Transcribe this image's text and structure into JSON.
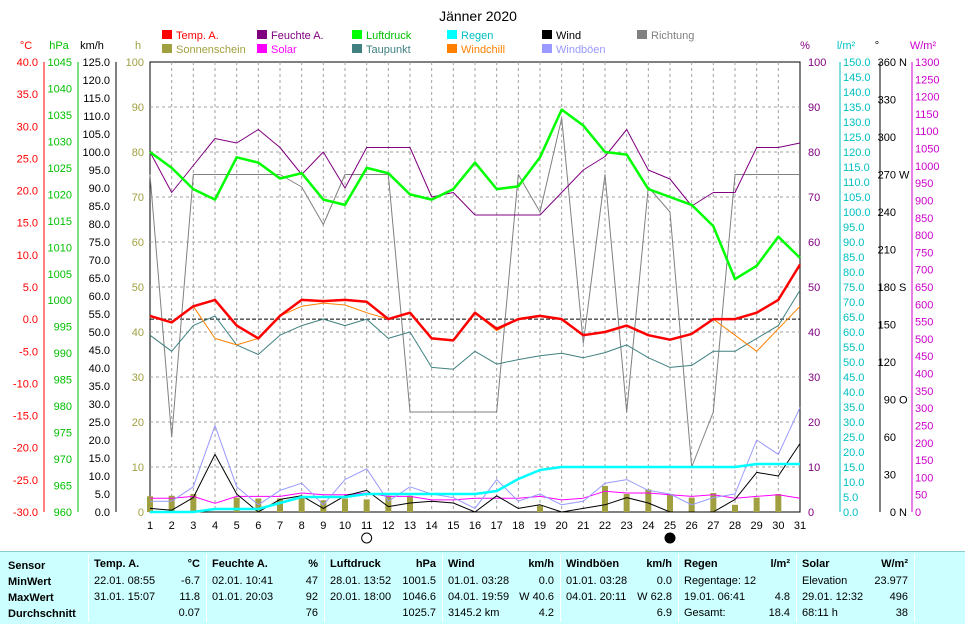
{
  "chart_data": {
    "type": "line",
    "title": "Jänner 2020",
    "xlim": [
      1,
      31
    ],
    "x": [
      1,
      2,
      3,
      4,
      5,
      6,
      7,
      8,
      9,
      10,
      11,
      12,
      13,
      14,
      15,
      16,
      17,
      18,
      19,
      20,
      21,
      22,
      23,
      24,
      25,
      26,
      27,
      28,
      29,
      30,
      31
    ],
    "legend": [
      {
        "key": "temp",
        "label": "Temp. A.",
        "color": "#ff0000"
      },
      {
        "key": "feuchte",
        "label": "Feuchte A.",
        "color": "#800080"
      },
      {
        "key": "luftdruck",
        "label": "Luftdruck",
        "color": "#00ff00"
      },
      {
        "key": "regen",
        "label": "Regen",
        "color": "#00ffff"
      },
      {
        "key": "wind",
        "label": "Wind",
        "color": "#000000"
      },
      {
        "key": "richtung",
        "label": "Richtung",
        "color": "#808080"
      },
      {
        "key": "sonne",
        "label": "Sonnenschein",
        "color": "#a0a040"
      },
      {
        "key": "solar",
        "label": "Solar",
        "color": "#ff00ff"
      },
      {
        "key": "taupunkt",
        "label": "Taupunkt",
        "color": "#408080"
      },
      {
        "key": "windchill",
        "label": "Windchill",
        "color": "#ff8000"
      },
      {
        "key": "windboeen",
        "label": "Windböen",
        "color": "#9999ff"
      }
    ],
    "axes": {
      "temp": {
        "unit": "°C",
        "min": -30,
        "max": 40,
        "step": 5,
        "color": "#ff0000"
      },
      "hpa": {
        "unit": "hPa",
        "min": 960,
        "max": 1045,
        "step": 5,
        "color": "#00c000"
      },
      "kmh": {
        "unit": "km/h",
        "min": 0,
        "max": 125,
        "step": 5,
        "color": "#000000"
      },
      "h": {
        "unit": "h",
        "min": 0,
        "max": 100,
        "step": 10,
        "color": "#a0a040"
      },
      "pct": {
        "unit": "%",
        "min": 0,
        "max": 100,
        "step": 10,
        "color": "#800080"
      },
      "lm2": {
        "unit": "l/m²",
        "min": 0,
        "max": 150,
        "step": 5,
        "color": "#00c0c0"
      },
      "deg": {
        "unit": "°",
        "min": 0,
        "max": 360,
        "step": 30,
        "color": "#000000",
        "compass": {
          "360": "N",
          "270": "W",
          "180": "S",
          "90": "O",
          "0": "N"
        }
      },
      "wm2": {
        "unit": "W/m²",
        "min": 0,
        "max": 1300,
        "step": 50,
        "color": "#cc00cc"
      }
    },
    "series": {
      "temp": [
        0.5,
        -0.5,
        2,
        3,
        -1,
        -3,
        0.5,
        3,
        2.8,
        3,
        2.7,
        0,
        1,
        -3,
        -3.3,
        1,
        -1.5,
        0,
        0.5,
        0,
        -2.5,
        -2,
        -1,
        -2.5,
        -3.2,
        -2.3,
        0,
        0,
        1,
        3,
        8.5
      ],
      "taupunkt": [
        -2.5,
        -5,
        -1,
        0.5,
        -4,
        -5.5,
        -2.5,
        -1,
        0,
        -1,
        0,
        -3,
        -2,
        -7.5,
        -7.8,
        -5,
        -7,
        -6.3,
        -5.7,
        -5.3,
        -6,
        -5.2,
        -4,
        -6,
        -7.5,
        -7.2,
        -5,
        -5,
        -3,
        -1,
        4.5
      ],
      "windchill": [
        0.5,
        -0.5,
        2,
        -3,
        -4,
        -3,
        0.5,
        2,
        2.5,
        2.2,
        1,
        0,
        1,
        -3,
        -3.3,
        1,
        -1.8,
        0,
        0.5,
        0,
        -2.5,
        -2,
        -1,
        -2.5,
        -3.2,
        -2.3,
        0,
        -2.5,
        -5,
        -1.5,
        2
      ],
      "feuchte": [
        80,
        71,
        77,
        83,
        82,
        85,
        81,
        75,
        80,
        72,
        81,
        81,
        81,
        70,
        71,
        66,
        66,
        66,
        66,
        71,
        76,
        79,
        85,
        76,
        74,
        68,
        71,
        71,
        81,
        81,
        82
      ],
      "luftdruck": [
        1028,
        1025,
        1021,
        1019,
        1027,
        1026,
        1023,
        1024,
        1019,
        1018,
        1025,
        1024,
        1020,
        1019,
        1021,
        1026,
        1021,
        1021.5,
        1027,
        1036,
        1033,
        1028,
        1027.5,
        1021,
        1019.5,
        1018,
        1014,
        1004,
        1006.5,
        1012,
        1008
      ],
      "regen": [
        0,
        0,
        0,
        1,
        1,
        1,
        3,
        5,
        5,
        5,
        6,
        6,
        6,
        6,
        6,
        6,
        7,
        11,
        14,
        15,
        15,
        15,
        15,
        15,
        15,
        15,
        15,
        15,
        16,
        16,
        16
      ],
      "wind": [
        1,
        0.5,
        4,
        16,
        5,
        0,
        3.5,
        4.5,
        1,
        4.5,
        6,
        1.5,
        2.5,
        3,
        2.5,
        0,
        4.5,
        1,
        2,
        0,
        1,
        2,
        4,
        2.5,
        0,
        0,
        0,
        3.5,
        11,
        10,
        19
      ],
      "windboeen": [
        3,
        3,
        7,
        24,
        7,
        2,
        6,
        8,
        2,
        9,
        12,
        3,
        7,
        5,
        4,
        1,
        9,
        3,
        5,
        2,
        3,
        8,
        9,
        6,
        5,
        2,
        4,
        5,
        20,
        16,
        29
      ],
      "richtung": [
        270,
        60,
        270,
        270,
        270,
        270,
        270,
        260,
        230,
        270,
        270,
        270,
        80,
        80,
        80,
        80,
        80,
        270,
        240,
        315,
        135,
        270,
        80,
        260,
        240,
        36,
        80,
        270,
        270,
        270,
        270
      ],
      "sonne": [
        3.5,
        3.6,
        4,
        0,
        3.2,
        3,
        3,
        3.2,
        2.6,
        3,
        2.8,
        3.6,
        3.6,
        0,
        0,
        0,
        0,
        0,
        1.4,
        0,
        0,
        5.8,
        4,
        5,
        4,
        3.2,
        4.2,
        1.6,
        3.2,
        4,
        0
      ],
      "solar": [
        40,
        40,
        45,
        25,
        45,
        45,
        45,
        55,
        50,
        50,
        55,
        45,
        45,
        35,
        35,
        40,
        40,
        40,
        45,
        35,
        40,
        60,
        55,
        55,
        50,
        45,
        50,
        40,
        45,
        50,
        40
      ]
    },
    "moon_markers": [
      {
        "day": 11,
        "phase": "full"
      },
      {
        "day": 25,
        "phase": "new"
      }
    ]
  },
  "stats": {
    "sensor": {
      "h": "Sensor",
      "r1": "MinWert",
      "r2": "MaxWert",
      "r3": "Durchschnitt"
    },
    "temp": {
      "h": "Temp. A.",
      "unit": "°C",
      "min_time": "22.01.  08:55",
      "min": "-6.7",
      "max_time": "31.01.  15:07",
      "max": "11.8",
      "avg": "0.07"
    },
    "feuchte": {
      "h": "Feuchte A.",
      "unit": "%",
      "min_time": "02.01.  10:41",
      "min": "47",
      "max_time": "01.01.  20:03",
      "max": "92",
      "avg": "76"
    },
    "luftdruck": {
      "h": "Luftdruck",
      "unit": "hPa",
      "min_time": "28.01.  13:52",
      "min": "1001.5",
      "max_time": "20.01.  18:00",
      "max": "1046.6",
      "avg": "1025.7"
    },
    "wind": {
      "h": "Wind",
      "unit": "km/h",
      "min_time": "01.01.  03:28",
      "min": "0.0",
      "max_time": "04.01.  19:59",
      "max": "W  40.6",
      "extra": "3145.2 km",
      "avg": "4.2"
    },
    "boeen": {
      "h": "Windböen",
      "unit": "km/h",
      "min_time": "01.01.  03:28",
      "min": "0.0",
      "max_time": "04.01.  20:11",
      "max": "W  62.8",
      "avg": "6.9"
    },
    "regen": {
      "h": "Regen",
      "unit": "l/m²",
      "r1": "Regentage: 12",
      "max_time": "19.01.  06:41",
      "max": "4.8",
      "r3": "Gesamt:",
      "total": "18.4"
    },
    "solar": {
      "h": "Solar",
      "unit": "W/m²",
      "r1": "Elevation",
      "elev": "23.977",
      "max_time": "29.01.  12:32",
      "max": "496",
      "hours": "68:11 h",
      "avg": "38"
    }
  }
}
